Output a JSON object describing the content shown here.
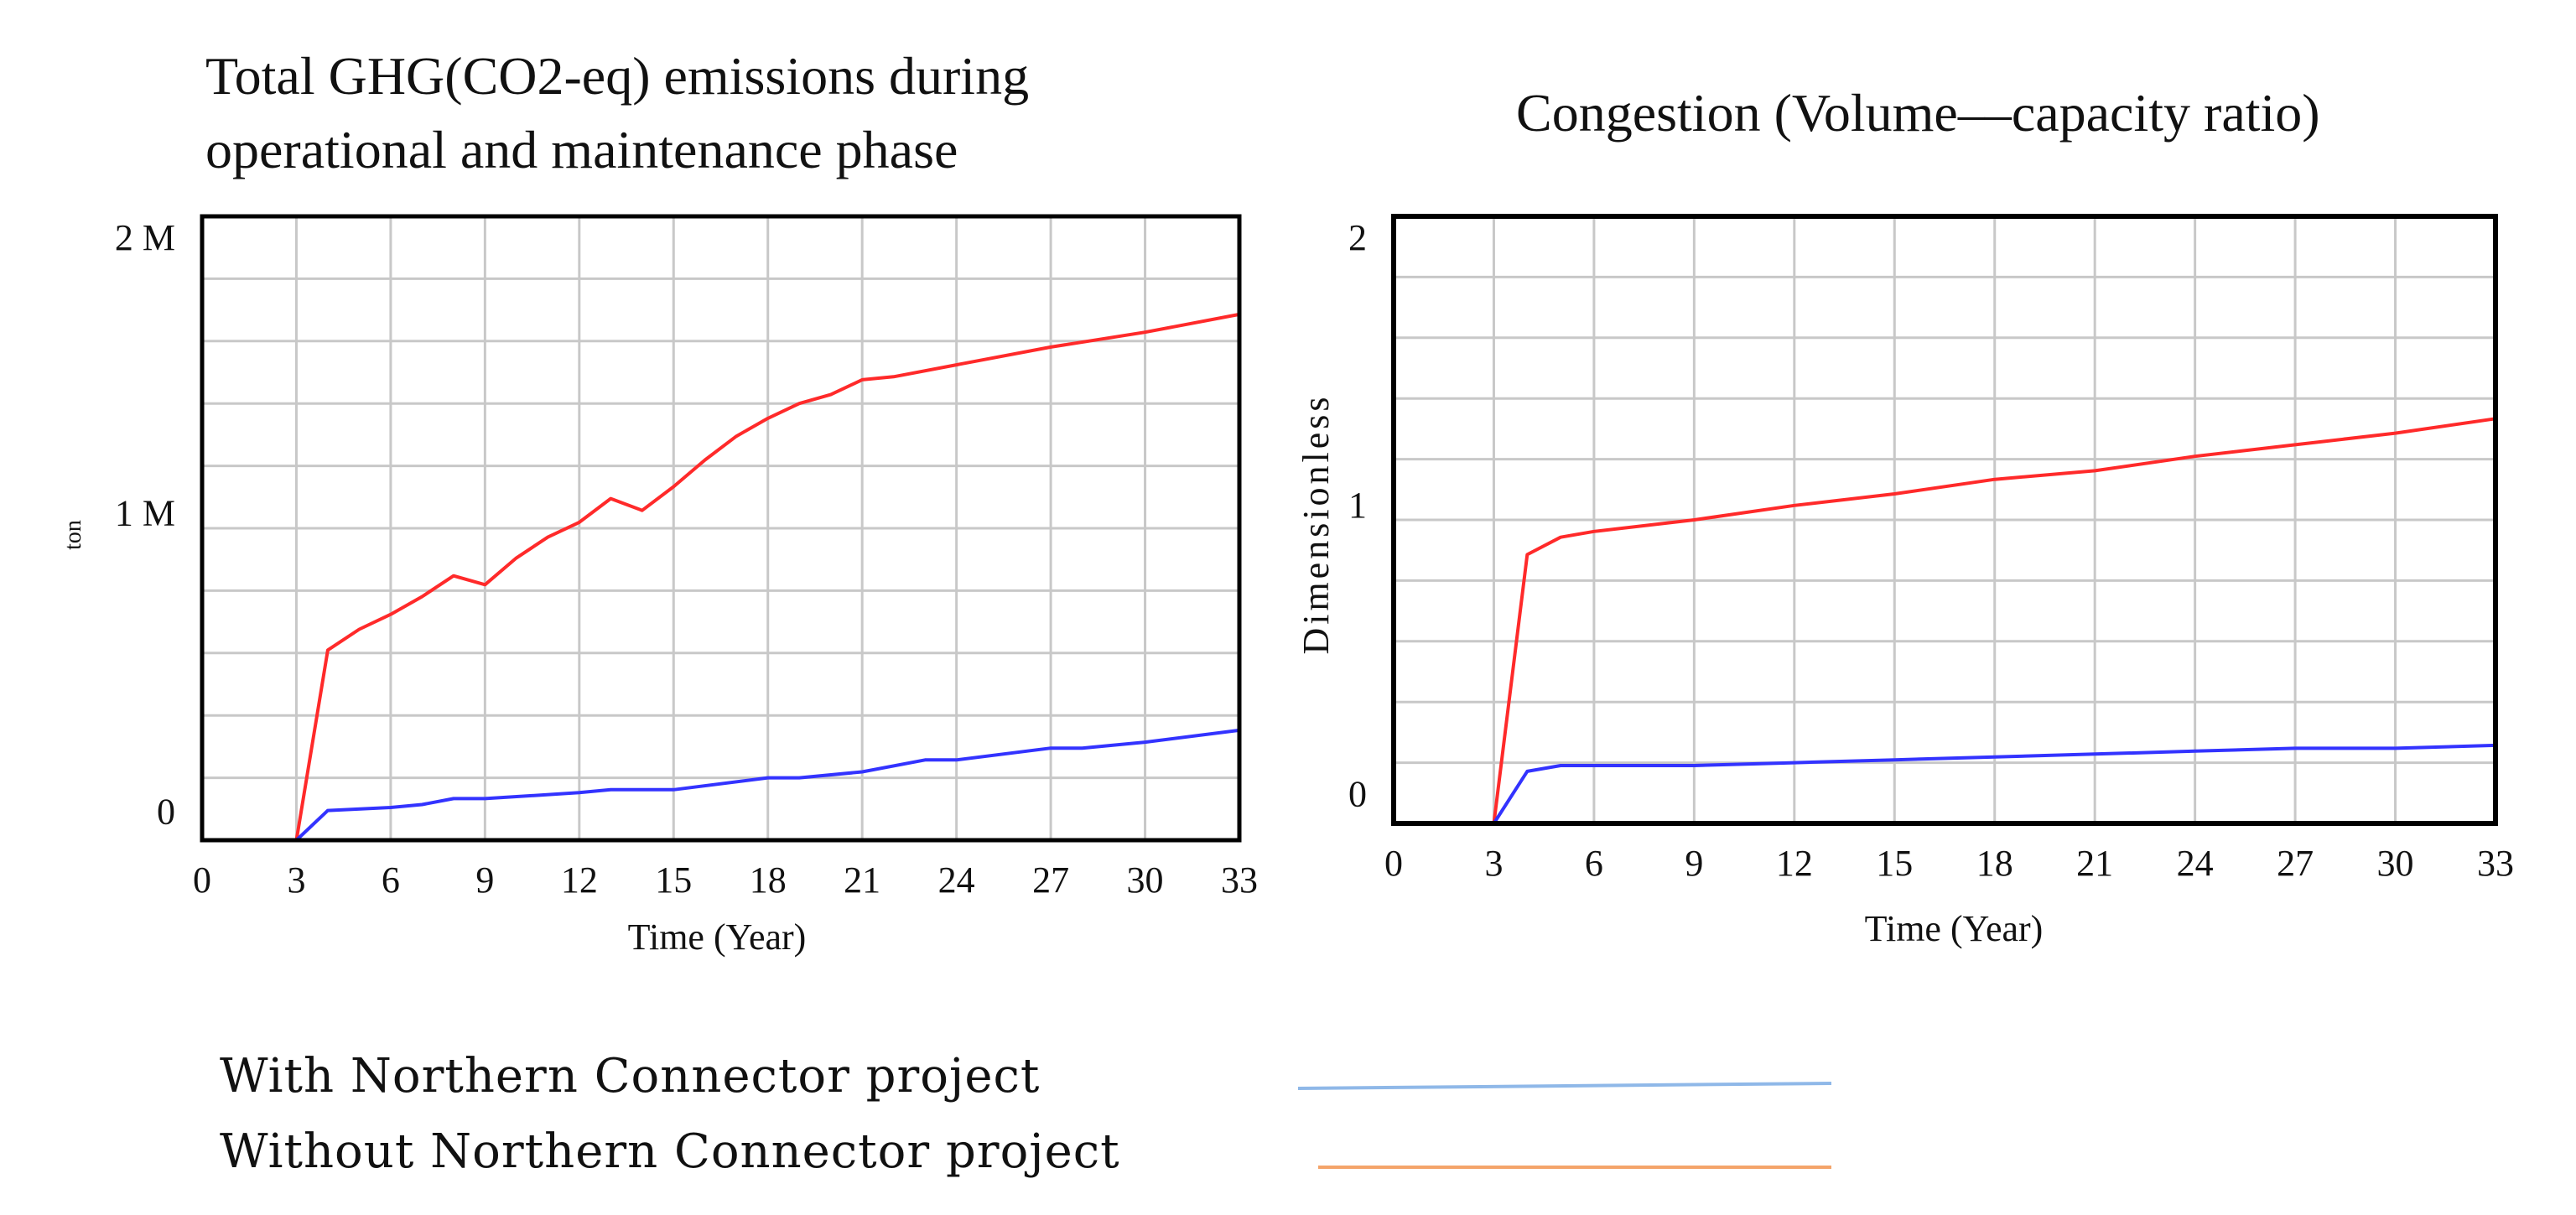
{
  "chart_data": [
    {
      "type": "line",
      "title_lines": [
        "Total GHG(CO2-eq) emissions during",
        "operational and maintenance phase"
      ],
      "xlabel": "Time (Year)",
      "ylabel": "ton",
      "x_ticks": [
        0,
        3,
        6,
        9,
        12,
        15,
        18,
        21,
        24,
        27,
        30,
        33
      ],
      "y_ticks": [
        {
          "value": 0,
          "label": "0"
        },
        {
          "value": 1000000,
          "label": "1 M"
        },
        {
          "value": 2000000,
          "label": "2 M"
        }
      ],
      "xlim": [
        0,
        33
      ],
      "ylim": [
        -100000,
        2000000
      ],
      "grid": true,
      "series": [
        {
          "name": "Without Northern Connector project",
          "color": "#ff2a2a",
          "points": [
            [
              0,
              -100000
            ],
            [
              3,
              -100000
            ],
            [
              4,
              540000
            ],
            [
              5,
              610000
            ],
            [
              6,
              660000
            ],
            [
              7,
              720000
            ],
            [
              8,
              790000
            ],
            [
              9,
              760000
            ],
            [
              10,
              850000
            ],
            [
              11,
              920000
            ],
            [
              12,
              970000
            ],
            [
              13,
              1050000
            ],
            [
              14,
              1010000
            ],
            [
              15,
              1090000
            ],
            [
              16,
              1180000
            ],
            [
              17,
              1260000
            ],
            [
              18,
              1320000
            ],
            [
              19,
              1370000
            ],
            [
              20,
              1400000
            ],
            [
              21,
              1450000
            ],
            [
              22,
              1460000
            ],
            [
              24,
              1500000
            ],
            [
              27,
              1560000
            ],
            [
              30,
              1610000
            ],
            [
              33,
              1670000
            ]
          ]
        },
        {
          "name": "With Northern Connector project",
          "color": "#3333ff",
          "points": [
            [
              0,
              -100000
            ],
            [
              3,
              -100000
            ],
            [
              4,
              0
            ],
            [
              6,
              10000
            ],
            [
              7,
              20000
            ],
            [
              8,
              40000
            ],
            [
              9,
              40000
            ],
            [
              12,
              60000
            ],
            [
              13,
              70000
            ],
            [
              14,
              70000
            ],
            [
              15,
              70000
            ],
            [
              18,
              110000
            ],
            [
              19,
              110000
            ],
            [
              21,
              130000
            ],
            [
              23,
              170000
            ],
            [
              24,
              170000
            ],
            [
              27,
              210000
            ],
            [
              28,
              210000
            ],
            [
              30,
              230000
            ],
            [
              33,
              270000
            ]
          ]
        }
      ]
    },
    {
      "type": "line",
      "title_lines": [
        "Congestion (Volume––capacity ratio)"
      ],
      "xlabel": "Time (Year)",
      "ylabel": "Dimensionless",
      "x_ticks": [
        0,
        3,
        6,
        9,
        12,
        15,
        18,
        21,
        24,
        27,
        30,
        33
      ],
      "y_ticks": [
        {
          "value": 0,
          "label": "0"
        },
        {
          "value": 1,
          "label": "1"
        },
        {
          "value": 2,
          "label": "2"
        }
      ],
      "xlim": [
        0,
        33
      ],
      "ylim": [
        -0.1,
        2
      ],
      "grid": true,
      "series": [
        {
          "name": "Without Northern Connector project",
          "color": "#ff2a2a",
          "points": [
            [
              0,
              -0.1
            ],
            [
              3,
              -0.1
            ],
            [
              4,
              0.83
            ],
            [
              5,
              0.89
            ],
            [
              6,
              0.91
            ],
            [
              9,
              0.95
            ],
            [
              12,
              1.0
            ],
            [
              15,
              1.04
            ],
            [
              18,
              1.09
            ],
            [
              21,
              1.12
            ],
            [
              24,
              1.17
            ],
            [
              27,
              1.21
            ],
            [
              30,
              1.25
            ],
            [
              33,
              1.3
            ]
          ]
        },
        {
          "name": "With Northern Connector project",
          "color": "#3333ff",
          "points": [
            [
              0,
              -0.1
            ],
            [
              3,
              -0.1
            ],
            [
              4,
              0.08
            ],
            [
              5,
              0.1
            ],
            [
              9,
              0.1
            ],
            [
              12,
              0.11
            ],
            [
              15,
              0.12
            ],
            [
              18,
              0.13
            ],
            [
              21,
              0.14
            ],
            [
              24,
              0.15
            ],
            [
              27,
              0.16
            ],
            [
              30,
              0.16
            ],
            [
              33,
              0.17
            ]
          ]
        }
      ]
    }
  ],
  "legend": [
    {
      "label": "With Northern Connector project",
      "color": "#8fb8e8"
    },
    {
      "label": "Without Northern Connector project",
      "color": "#f4a46a"
    }
  ]
}
